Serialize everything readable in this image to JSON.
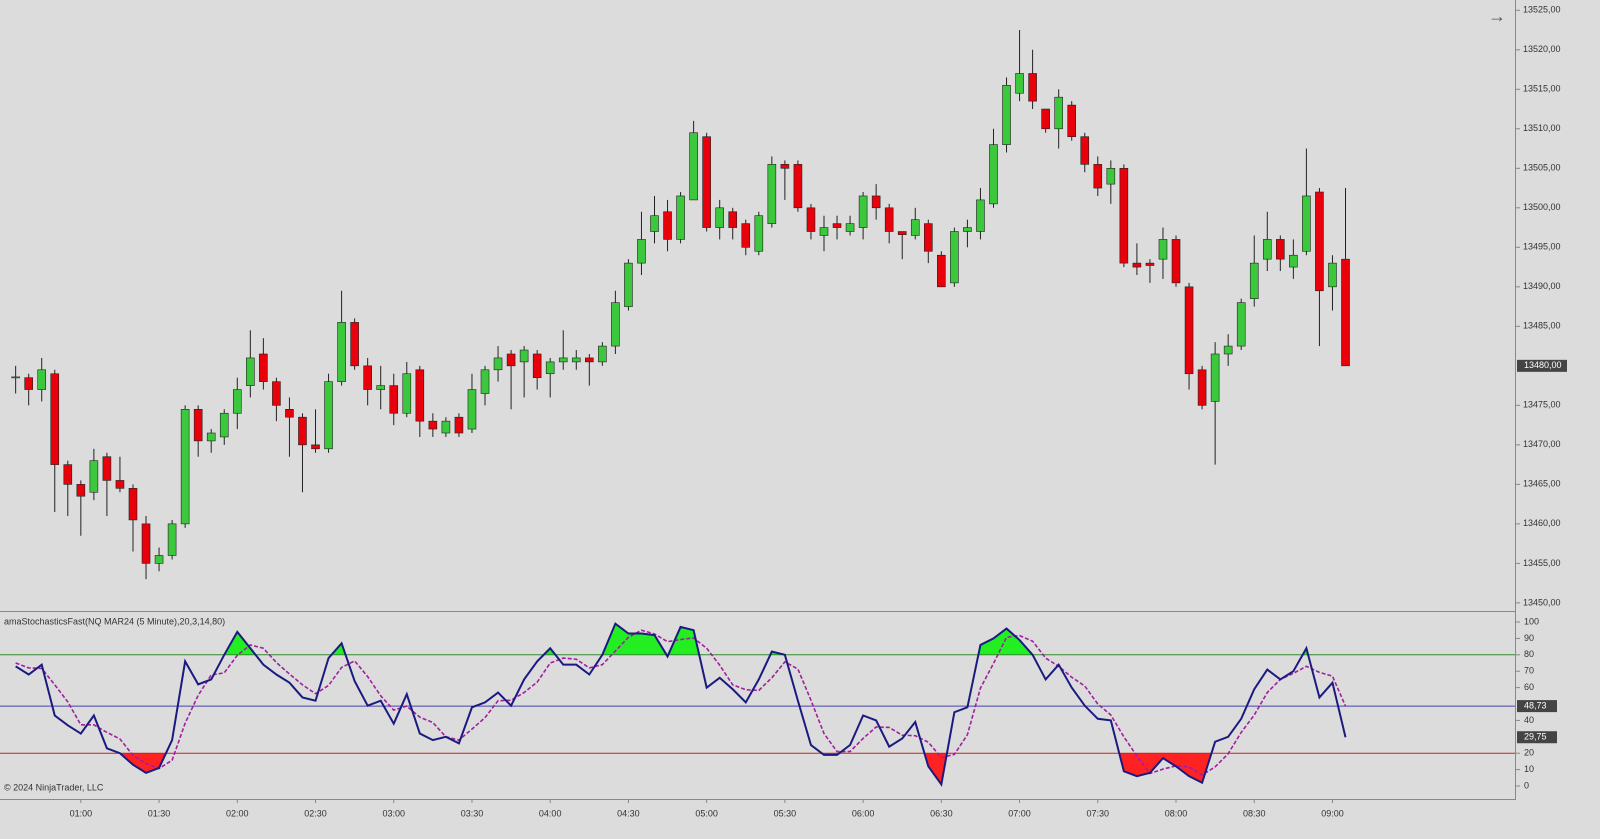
{
  "chart_data": [
    {
      "type": "candlestick",
      "up_color": "#3cc83c",
      "down_color": "#e8000b",
      "xlim": [
        -1.2,
        115
      ],
      "ylim": [
        13449.1,
        13526.3
      ],
      "yticks": [
        {
          "value": 13525,
          "label": "13525,00"
        },
        {
          "value": 13520,
          "label": "13520,00"
        },
        {
          "value": 13515,
          "label": "13515,00"
        },
        {
          "value": 13510,
          "label": "13510,00"
        },
        {
          "value": 13505,
          "label": "13505,00"
        },
        {
          "value": 13500,
          "label": "13500,00"
        },
        {
          "value": 13495,
          "label": "13495,00"
        },
        {
          "value": 13490,
          "label": "13490,00"
        },
        {
          "value": 13485,
          "label": "13485,00"
        },
        {
          "value": 13475,
          "label": "13475,00"
        },
        {
          "value": 13470,
          "label": "13470,00"
        },
        {
          "value": 13465,
          "label": "13465,00"
        },
        {
          "value": 13460,
          "label": "13460,00"
        },
        {
          "value": 13455,
          "label": "13455,00"
        },
        {
          "value": 13450,
          "label": "13450,00"
        }
      ],
      "last_label": "13480,00",
      "open": [
        13478.5,
        13478.5,
        13477,
        13479,
        13467.5,
        13465,
        13464,
        13468.5,
        13465.5,
        13464.5,
        13460,
        13455,
        13456,
        13460,
        13474.5,
        13470.5,
        13471,
        13474,
        13477.5,
        13481.5,
        13478,
        13474.5,
        13473.5,
        13470,
        13469.5,
        13478,
        13485.5,
        13480,
        13477,
        13477.5,
        13474,
        13479.5,
        13473,
        13471.5,
        13473.5,
        13472,
        13476.5,
        13479.5,
        13481.5,
        13480.5,
        13481.5,
        13479,
        13480.5,
        13480.5,
        13481,
        13480.5,
        13482.5,
        13487.5,
        13493,
        13497,
        13499.5,
        13496,
        13501,
        13509,
        13497.5,
        13499.5,
        13498,
        13494.5,
        13498,
        13505.5,
        13505.5,
        13500,
        13496.5,
        13498,
        13497,
        13497.5,
        13501.5,
        13500,
        13497,
        13496.5,
        13498,
        13494,
        13490.5,
        13497,
        13497,
        13500.5,
        13508,
        13514.5,
        13517,
        13512.5,
        13510,
        13513,
        13509,
        13505.5,
        13503,
        13505,
        13493,
        13493,
        13493.5,
        13496,
        13490,
        13479.5,
        13475.5,
        13481.5,
        13482.5,
        13488.5,
        13493.5,
        13496,
        13492.5,
        13494.5,
        13502,
        13490,
        13493.5
      ],
      "high": [
        13480,
        13479,
        13481,
        13479.5,
        13468,
        13465.5,
        13469.5,
        13469,
        13468.5,
        13465,
        13461,
        13457,
        13460.5,
        13475,
        13475,
        13472,
        13474.5,
        13478.5,
        13484.5,
        13483.5,
        13478.5,
        13476,
        13474,
        13474.5,
        13479,
        13489.5,
        13486,
        13481,
        13480,
        13479,
        13480.5,
        13480,
        13474,
        13473.5,
        13474,
        13479,
        13480,
        13482.5,
        13482,
        13482.5,
        13482,
        13481,
        13484.5,
        13482,
        13481.5,
        13483,
        13489.5,
        13493.5,
        13499.5,
        13501.5,
        13501,
        13502,
        13511,
        13509.5,
        13501,
        13500,
        13498.5,
        13499.5,
        13506.5,
        13506,
        13506,
        13500.5,
        13499,
        13499,
        13499,
        13502,
        13503,
        13500.5,
        13497,
        13500,
        13498.5,
        13494.5,
        13497.5,
        13498.5,
        13502.5,
        13510,
        13516.5,
        13522.5,
        13520,
        13512.5,
        13515,
        13513.5,
        13509.5,
        13506.5,
        13506,
        13505.5,
        13495.5,
        13493.5,
        13497.5,
        13496.5,
        13490.5,
        13480,
        13483,
        13484,
        13488.5,
        13496.5,
        13499.5,
        13496.5,
        13496,
        13507.5,
        13502.5,
        13494,
        13502.5
      ],
      "low": [
        13476.5,
        13475,
        13475.5,
        13461.5,
        13461,
        13458.5,
        13463,
        13461,
        13464,
        13456.5,
        13453,
        13454,
        13455.5,
        13459.5,
        13468.5,
        13469,
        13470,
        13472,
        13476,
        13477,
        13473,
        13468.5,
        13464,
        13469,
        13469,
        13477.5,
        13479.5,
        13475,
        13474.5,
        13472.5,
        13473.5,
        13471,
        13471,
        13471,
        13471,
        13471.5,
        13475,
        13478,
        13474.5,
        13476,
        13477,
        13476,
        13479.5,
        13479.5,
        13477.5,
        13480,
        13481.5,
        13487,
        13491.5,
        13495.5,
        13494.5,
        13495.5,
        13501,
        13497,
        13496,
        13496,
        13494,
        13494,
        13497.5,
        13501,
        13499.5,
        13496,
        13494.5,
        13496,
        13496.5,
        13496,
        13498.5,
        13495.5,
        13493.5,
        13496,
        13493,
        13490,
        13490,
        13495,
        13496,
        13500,
        13507,
        13513.5,
        13512.5,
        13509.5,
        13507.5,
        13508.5,
        13504.5,
        13501.5,
        13500.5,
        13492.5,
        13491.5,
        13490.5,
        13491,
        13490,
        13477,
        13474.5,
        13467.5,
        13480,
        13482,
        13487.5,
        13492,
        13492,
        13491,
        13494,
        13482.5,
        13487,
        13480
      ],
      "close": [
        13478.6,
        13477,
        13479.5,
        13467.5,
        13465,
        13463.5,
        13468,
        13465.5,
        13464.5,
        13460.5,
        13455,
        13456,
        13460,
        13474.5,
        13470.5,
        13471.5,
        13474,
        13477,
        13481,
        13478,
        13475,
        13473.5,
        13470,
        13469.5,
        13478,
        13485.5,
        13480,
        13477,
        13477.5,
        13474,
        13479,
        13473,
        13472,
        13473,
        13471.5,
        13477,
        13479.5,
        13481,
        13480,
        13482,
        13478.5,
        13480.5,
        13481,
        13481,
        13480.5,
        13482.5,
        13488,
        13493,
        13496,
        13499,
        13496,
        13501.5,
        13509.5,
        13497.5,
        13500,
        13497.5,
        13495,
        13499,
        13505.5,
        13505,
        13500,
        13497,
        13497.5,
        13497.5,
        13498,
        13501.5,
        13500,
        13497,
        13496.6,
        13498.5,
        13494.5,
        13490,
        13497,
        13497.5,
        13501,
        13508,
        13515.5,
        13517,
        13513.5,
        13510,
        13514,
        13509,
        13505.5,
        13502.5,
        13505,
        13493,
        13492.5,
        13492.7,
        13496,
        13490.5,
        13479,
        13475,
        13481.5,
        13482.5,
        13488,
        13493,
        13496,
        13493.5,
        13494,
        13501.5,
        13489.5,
        13493,
        13480
      ]
    },
    {
      "type": "line",
      "title": "amaStochasticsFast(NQ MAR24 (5 Minute),20,3,14,80)",
      "xlim": [
        -1.2,
        115
      ],
      "ylim": [
        -7.3,
        106.1
      ],
      "yticks": [
        100,
        90,
        80,
        70,
        60,
        40,
        20,
        10,
        0
      ],
      "xticks": [
        {
          "value": 5,
          "label": "01:00"
        },
        {
          "value": 11,
          "label": "01:30"
        },
        {
          "value": 17,
          "label": "02:00"
        },
        {
          "value": 23,
          "label": "02:30"
        },
        {
          "value": 29,
          "label": "03:00"
        },
        {
          "value": 35,
          "label": "03:30"
        },
        {
          "value": 41,
          "label": "04:00"
        },
        {
          "value": 47,
          "label": "04:30"
        },
        {
          "value": 53,
          "label": "05:00"
        },
        {
          "value": 59,
          "label": "05:30"
        },
        {
          "value": 65,
          "label": "06:00"
        },
        {
          "value": 71,
          "label": "06:30"
        },
        {
          "value": 77,
          "label": "07:00"
        },
        {
          "value": 83,
          "label": "07:30"
        },
        {
          "value": 89,
          "label": "08:00"
        },
        {
          "value": 95,
          "label": "08:30"
        },
        {
          "value": 101,
          "label": "09:00"
        }
      ],
      "hlines": [
        {
          "value": 80,
          "color": "#2e8b2e",
          "fill": "#22ee22",
          "side": "above"
        },
        {
          "value": 48.73,
          "color": "#4444aa",
          "label": "48,73"
        },
        {
          "value": 20,
          "color": "#cc2222",
          "fill": "#ff2222",
          "side": "below"
        }
      ],
      "series": [
        {
          "color": "#1a1a80",
          "last_label": "29,75",
          "values": [
            73,
            68,
            74,
            43,
            37,
            32,
            43,
            23,
            20,
            13,
            8,
            11,
            28,
            76,
            62,
            65,
            80,
            94,
            84,
            74,
            68,
            63,
            54,
            52,
            78,
            87,
            64,
            49,
            52,
            38,
            56,
            32,
            28,
            30,
            26,
            48,
            51,
            57,
            49,
            65,
            76,
            84,
            74,
            74,
            68,
            80,
            99,
            93,
            93,
            92,
            79,
            97,
            95,
            60,
            66,
            59,
            51,
            65,
            82,
            80,
            52,
            25,
            19,
            19,
            25,
            43,
            40,
            24,
            29,
            39,
            12,
            1,
            45,
            48,
            86,
            90,
            96,
            89,
            80,
            65,
            74,
            60,
            49,
            41,
            40,
            9,
            6,
            8,
            17,
            12,
            6,
            2,
            27,
            30,
            41,
            59,
            71,
            65,
            70,
            84,
            54,
            63,
            29.75
          ]
        },
        {
          "color": "#a020a0",
          "dash": true,
          "values": [
            75,
            72,
            71.7,
            61.7,
            51.3,
            37.3,
            37.3,
            32.7,
            28.7,
            18.7,
            13.7,
            10.7,
            15.7,
            38.3,
            55.3,
            67.7,
            69,
            79.7,
            86,
            84,
            75.3,
            68.3,
            61.7,
            56.3,
            61.3,
            72.3,
            76.3,
            66.7,
            55,
            46.3,
            48.7,
            42,
            38.7,
            30,
            28,
            34.7,
            41.7,
            52,
            52.3,
            57,
            63.3,
            75,
            78,
            77.3,
            72,
            74,
            82.3,
            90.7,
            95,
            92.7,
            88,
            89.3,
            90.3,
            84,
            73.7,
            61.7,
            58.7,
            58.3,
            66,
            75.7,
            71.3,
            52.3,
            32,
            21,
            21,
            29,
            36,
            35.7,
            31,
            30.7,
            26.7,
            17.3,
            19.3,
            31.3,
            59.7,
            74.7,
            90.7,
            91.7,
            88.3,
            78,
            73,
            66.3,
            61,
            50,
            43.3,
            30,
            18.3,
            7.7,
            10.3,
            12.3,
            11.7,
            6.7,
            11.7,
            19.7,
            32.7,
            43.3,
            57,
            65,
            68.7,
            73,
            69.3,
            67,
            48.73
          ]
        }
      ]
    }
  ],
  "copyright": "© 2024 NinjaTrader, LLC",
  "arrow": "→"
}
